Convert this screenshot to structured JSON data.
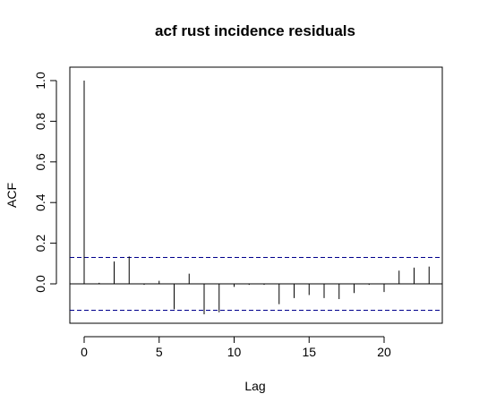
{
  "chart_data": {
    "type": "bar",
    "title": "acf rust incidence residuals",
    "xlabel": "Lag",
    "ylabel": "ACF",
    "xlim": [
      -1,
      24
    ],
    "ylim": [
      -0.2,
      1.05
    ],
    "x_ticks": [
      0,
      5,
      10,
      15,
      20
    ],
    "y_ticks": [
      0.0,
      0.2,
      0.4,
      0.6,
      0.8,
      1.0
    ],
    "y_tick_labels": [
      "0.0",
      "0.2",
      "0.4",
      "0.6",
      "0.8",
      "1.0"
    ],
    "lags": [
      0,
      1,
      2,
      3,
      4,
      5,
      6,
      7,
      8,
      9,
      10,
      11,
      12,
      13,
      14,
      15,
      16,
      17,
      18,
      19,
      20,
      21,
      22,
      23
    ],
    "values": [
      1.0,
      0.005,
      0.11,
      0.135,
      -0.005,
      0.015,
      -0.125,
      0.05,
      -0.15,
      -0.14,
      -0.015,
      -0.005,
      -0.005,
      -0.1,
      -0.07,
      -0.055,
      -0.07,
      -0.075,
      -0.045,
      -0.005,
      -0.04,
      0.065,
      0.08,
      0.085
    ],
    "confidence_bound": 0.13,
    "confidence_color": "#00008B",
    "grid": false,
    "legend": "none"
  }
}
